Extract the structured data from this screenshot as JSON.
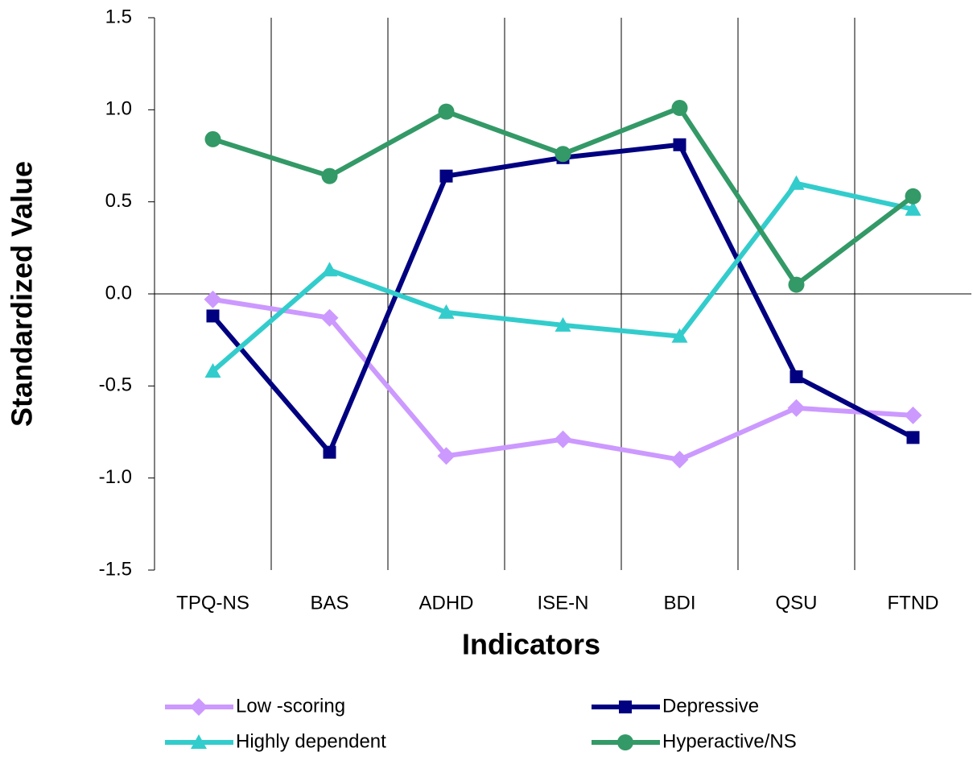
{
  "chart_data": {
    "type": "line",
    "x_label": "Indicators",
    "y_label": "Standardized Value",
    "categories": [
      "TPQ-NS",
      "BAS",
      "ADHD",
      "ISE-N",
      "BDI",
      "QSU",
      "FTND"
    ],
    "series": [
      {
        "name": "Low -scoring",
        "color": "#cc99ff",
        "marker": "diamond",
        "values": [
          -0.03,
          -0.13,
          -0.88,
          -0.79,
          -0.9,
          -0.62,
          -0.66
        ]
      },
      {
        "name": "Depressive",
        "color": "#000080",
        "marker": "square",
        "values": [
          -0.12,
          -0.86,
          0.64,
          0.74,
          0.81,
          -0.45,
          -0.78
        ]
      },
      {
        "name": "Highly dependent",
        "color": "#33cccc",
        "marker": "triangle",
        "values": [
          -0.42,
          0.13,
          -0.1,
          -0.17,
          -0.23,
          0.6,
          0.46
        ]
      },
      {
        "name": "Hyperactive/NS",
        "color": "#339966",
        "marker": "circle",
        "values": [
          0.84,
          0.64,
          0.99,
          0.76,
          1.01,
          0.05,
          0.53
        ]
      }
    ],
    "ylim": [
      -1.5,
      1.5
    ],
    "yticks": [
      -1.5,
      {
        "value": -1.0,
        "label": "-1.0"
      },
      -0.5,
      {
        "value": 0,
        "label": "0.0"
      },
      0.5,
      {
        "value": 1.0,
        "label": "1.0"
      },
      1.5
    ],
    "legend": "bottom"
  }
}
